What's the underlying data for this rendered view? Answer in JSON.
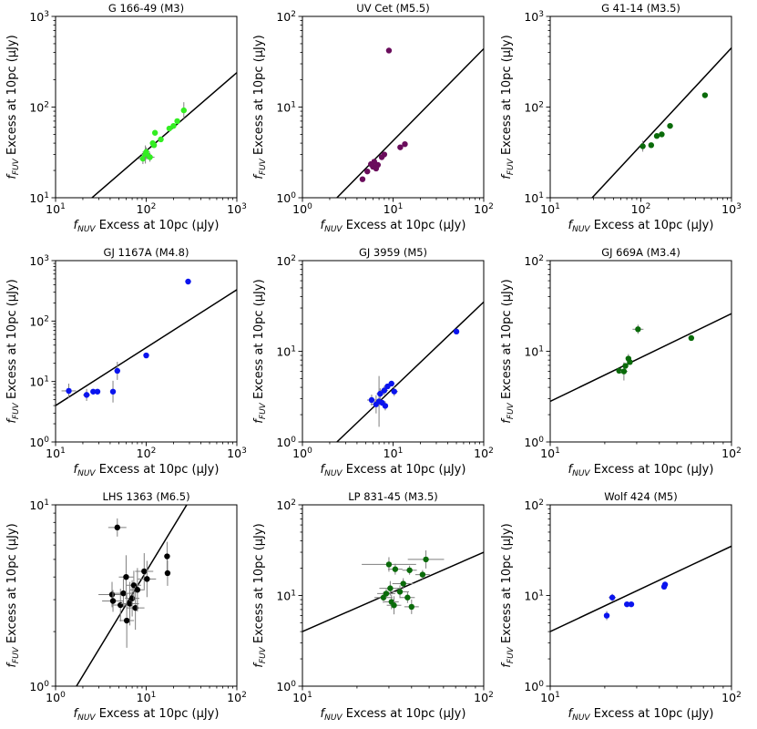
{
  "figure": {
    "xlabel_main": "f",
    "xlabel_sub": "NUV",
    "xlabel_rest": " Excess at 10pc (μJy)",
    "ylabel_main": "f",
    "ylabel_sub": "FUV",
    "ylabel_rest": " Excess at 10pc (μJy)"
  },
  "chart_data": [
    {
      "type": "scatter",
      "title": "G 166-49 (M3)",
      "color": "#33ee22",
      "x_scale": "log",
      "y_scale": "log",
      "xlim": [
        10,
        1000
      ],
      "ylim": [
        10,
        1000
      ],
      "x_ticks": [
        {
          "v": 10,
          "b": "10",
          "e": "1"
        },
        {
          "v": 100,
          "b": "10",
          "e": "2"
        },
        {
          "v": 1000,
          "b": "10",
          "e": "3"
        }
      ],
      "y_ticks": [
        {
          "v": 10,
          "b": "10",
          "e": "1"
        },
        {
          "v": 100,
          "b": "10",
          "e": "2"
        },
        {
          "v": 1000,
          "b": "10",
          "e": "3"
        }
      ],
      "fit_line": [
        [
          10,
          4.5
        ],
        [
          1000,
          240
        ]
      ],
      "points": [
        {
          "x": 92,
          "y": 27,
          "xerr": 0.05,
          "yerr": 0.06
        },
        {
          "x": 98,
          "y": 30,
          "xerr": 0.05,
          "yerr": 0.1
        },
        {
          "x": 100,
          "y": 32,
          "xerr": 0.04,
          "yerr": 0.05
        },
        {
          "x": 105,
          "y": 29
        },
        {
          "x": 110,
          "y": 28,
          "xerr": 0.05,
          "yerr": 0.05
        },
        {
          "x": 118,
          "y": 40
        },
        {
          "x": 122,
          "y": 38
        },
        {
          "x": 125,
          "y": 52
        },
        {
          "x": 145,
          "y": 44
        },
        {
          "x": 180,
          "y": 58
        },
        {
          "x": 200,
          "y": 62
        },
        {
          "x": 220,
          "y": 70
        },
        {
          "x": 260,
          "y": 92,
          "xerr": 0.03,
          "yerr": 0.09
        }
      ]
    },
    {
      "type": "scatter",
      "title": "UV Cet (M5.5)",
      "color": "#6a0d5c",
      "x_scale": "log",
      "y_scale": "log",
      "xlim": [
        1,
        100
      ],
      "ylim": [
        1,
        100
      ],
      "x_ticks": [
        {
          "v": 1,
          "b": "10",
          "e": "0"
        },
        {
          "v": 10,
          "b": "10",
          "e": "1"
        },
        {
          "v": 100,
          "b": "10",
          "e": "2"
        }
      ],
      "y_ticks": [
        {
          "v": 1,
          "b": "10",
          "e": "0"
        },
        {
          "v": 10,
          "b": "10",
          "e": "1"
        },
        {
          "v": 100,
          "b": "10",
          "e": "2"
        }
      ],
      "fit_line": [
        [
          2.4,
          1
        ],
        [
          100,
          44
        ]
      ],
      "points": [
        {
          "x": 9,
          "y": 42
        },
        {
          "x": 4.6,
          "y": 1.6
        },
        {
          "x": 5.2,
          "y": 1.95
        },
        {
          "x": 5.7,
          "y": 2.35
        },
        {
          "x": 6.0,
          "y": 2.2
        },
        {
          "x": 6.2,
          "y": 2.5
        },
        {
          "x": 6.5,
          "y": 2.1
        },
        {
          "x": 6.8,
          "y": 2.3
        },
        {
          "x": 7.5,
          "y": 2.8
        },
        {
          "x": 8.0,
          "y": 3.0
        },
        {
          "x": 12,
          "y": 3.6
        },
        {
          "x": 13.5,
          "y": 3.9
        }
      ]
    },
    {
      "type": "scatter",
      "title": "G 41-14 (M3.5)",
      "color": "#0a6b0a",
      "x_scale": "log",
      "y_scale": "log",
      "xlim": [
        10,
        1000
      ],
      "ylim": [
        10,
        1000
      ],
      "x_ticks": [
        {
          "v": 10,
          "b": "10",
          "e": "1"
        },
        {
          "v": 100,
          "b": "10",
          "e": "2"
        },
        {
          "v": 1000,
          "b": "10",
          "e": "3"
        }
      ],
      "y_ticks": [
        {
          "v": 10,
          "b": "10",
          "e": "1"
        },
        {
          "v": 100,
          "b": "10",
          "e": "2"
        },
        {
          "v": 1000,
          "b": "10",
          "e": "3"
        }
      ],
      "fit_line": [
        [
          29,
          10
        ],
        [
          1000,
          450
        ]
      ],
      "points": [
        {
          "x": 105,
          "y": 37,
          "xerr": 0.03,
          "yerr": 0.06
        },
        {
          "x": 130,
          "y": 38
        },
        {
          "x": 150,
          "y": 48
        },
        {
          "x": 170,
          "y": 50
        },
        {
          "x": 210,
          "y": 62
        },
        {
          "x": 510,
          "y": 135
        }
      ]
    },
    {
      "type": "scatter",
      "title": "GJ 1167A (M4.8)",
      "color": "#0a14ee",
      "x_scale": "log",
      "y_scale": "log",
      "xlim": [
        10,
        1000
      ],
      "ylim": [
        1,
        1000
      ],
      "x_ticks": [
        {
          "v": 10,
          "b": "10",
          "e": "1"
        },
        {
          "v": 100,
          "b": "10",
          "e": "2"
        },
        {
          "v": 1000,
          "b": "10",
          "e": "3"
        }
      ],
      "y_ticks": [
        {
          "v": 1,
          "b": "10",
          "e": "0"
        },
        {
          "v": 10,
          "b": "10",
          "e": "1"
        },
        {
          "v": 100,
          "b": "10",
          "e": "2"
        },
        {
          "v": 1000,
          "b": "10",
          "e": "3"
        }
      ],
      "fit_line": [
        [
          10,
          4
        ],
        [
          1000,
          330
        ]
      ],
      "points": [
        {
          "x": 14,
          "y": 7,
          "xerr": 0.08,
          "yerr": 0.12
        },
        {
          "x": 22,
          "y": 6,
          "xerr": 0.04,
          "yerr": 0.1
        },
        {
          "x": 26,
          "y": 6.8
        },
        {
          "x": 29,
          "y": 6.8
        },
        {
          "x": 43,
          "y": 6.8,
          "xerr": 0.03,
          "yerr": 0.18
        },
        {
          "x": 48,
          "y": 15,
          "xerr": 0.03,
          "yerr": 0.15
        },
        {
          "x": 100,
          "y": 27
        },
        {
          "x": 290,
          "y": 450
        }
      ]
    },
    {
      "type": "scatter",
      "title": "GJ 3959 (M5)",
      "color": "#0a14ee",
      "x_scale": "log",
      "y_scale": "log",
      "xlim": [
        1,
        100
      ],
      "ylim": [
        1,
        100
      ],
      "x_ticks": [
        {
          "v": 1,
          "b": "10",
          "e": "0"
        },
        {
          "v": 10,
          "b": "10",
          "e": "1"
        },
        {
          "v": 100,
          "b": "10",
          "e": "2"
        }
      ],
      "y_ticks": [
        {
          "v": 1,
          "b": "10",
          "e": "0"
        },
        {
          "v": 10,
          "b": "10",
          "e": "1"
        },
        {
          "v": 100,
          "b": "10",
          "e": "2"
        }
      ],
      "fit_line": [
        [
          2.4,
          1
        ],
        [
          100,
          35
        ]
      ],
      "points": [
        {
          "x": 5.8,
          "y": 2.9,
          "xerr": 0.05,
          "yerr": 0.06
        },
        {
          "x": 6.5,
          "y": 2.6,
          "xerr": 0.06,
          "yerr": 0.1
        },
        {
          "x": 7.0,
          "y": 2.8,
          "xerr": 0.05,
          "yerr": 0.28
        },
        {
          "x": 7.2,
          "y": 3.4,
          "xerr": 0.04,
          "yerr": 0.06
        },
        {
          "x": 7.6,
          "y": 2.7
        },
        {
          "x": 8.0,
          "y": 3.7,
          "xerr": 0.04,
          "yerr": 0.05
        },
        {
          "x": 8.2,
          "y": 2.5,
          "xerr": 0.03,
          "yerr": 0.05
        },
        {
          "x": 8.7,
          "y": 4.1
        },
        {
          "x": 9.6,
          "y": 4.4
        },
        {
          "x": 10.3,
          "y": 3.6,
          "xerr": 0.04,
          "yerr": 0.05
        },
        {
          "x": 50,
          "y": 16.5
        }
      ]
    },
    {
      "type": "scatter",
      "title": "GJ 669A (M3.4)",
      "color": "#0a6b0a",
      "x_scale": "log",
      "y_scale": "log",
      "xlim": [
        10,
        100
      ],
      "ylim": [
        1,
        100
      ],
      "x_ticks": [
        {
          "v": 10,
          "b": "10",
          "e": "1"
        },
        {
          "v": 100,
          "b": "10",
          "e": "2"
        }
      ],
      "y_ticks": [
        {
          "v": 1,
          "b": "10",
          "e": "0"
        },
        {
          "v": 10,
          "b": "10",
          "e": "1"
        },
        {
          "v": 100,
          "b": "10",
          "e": "2"
        }
      ],
      "fit_line": [
        [
          10,
          2.8
        ],
        [
          100,
          26
        ]
      ],
      "points": [
        {
          "x": 24,
          "y": 6.1
        },
        {
          "x": 25.5,
          "y": 6.0,
          "xerr": 0.02,
          "yerr": 0.1
        },
        {
          "x": 26,
          "y": 6.9
        },
        {
          "x": 27,
          "y": 8.3,
          "xerr": 0.01,
          "yerr": 0.05
        },
        {
          "x": 27.5,
          "y": 7.6
        },
        {
          "x": 30.5,
          "y": 17.5,
          "xerr": 0.03,
          "yerr": 0.05
        },
        {
          "x": 60,
          "y": 14
        }
      ]
    },
    {
      "type": "scatter",
      "title": "LHS 1363 (M6.5)",
      "color": "#000000",
      "x_scale": "log",
      "y_scale": "log",
      "xlim": [
        1,
        100
      ],
      "ylim": [
        1,
        10
      ],
      "x_ticks": [
        {
          "v": 1,
          "b": "10",
          "e": "0"
        },
        {
          "v": 10,
          "b": "10",
          "e": "1"
        },
        {
          "v": 100,
          "b": "10",
          "e": "2"
        }
      ],
      "y_ticks": [
        {
          "v": 1,
          "b": "10",
          "e": "0"
        },
        {
          "v": 10,
          "b": "10",
          "e": "1"
        }
      ],
      "fit_line": [
        [
          1.7,
          1
        ],
        [
          28,
          10
        ]
      ],
      "points": [
        {
          "x": 4.8,
          "y": 7.5,
          "xerr": 0.1,
          "yerr": 0.05
        },
        {
          "x": 4.2,
          "y": 3.2,
          "xerr": 0.15,
          "yerr": 0.07
        },
        {
          "x": 4.3,
          "y": 2.95,
          "xerr": 0.12,
          "yerr": 0.06
        },
        {
          "x": 5.2,
          "y": 2.8,
          "xerr": 0.1,
          "yerr": 0.09
        },
        {
          "x": 5.6,
          "y": 3.25,
          "xerr": 0.1,
          "yerr": 0.08
        },
        {
          "x": 6.0,
          "y": 4.0,
          "xerr": 0.08,
          "yerr": 0.12
        },
        {
          "x": 6.1,
          "y": 2.3,
          "xerr": 0.08,
          "yerr": 0.15
        },
        {
          "x": 6.6,
          "y": 2.85,
          "xerr": 0.1,
          "yerr": 0.12
        },
        {
          "x": 7.0,
          "y": 3.05,
          "xerr": 0.08,
          "yerr": 0.1
        },
        {
          "x": 7.3,
          "y": 3.6,
          "xerr": 0.08,
          "yerr": 0.08
        },
        {
          "x": 7.6,
          "y": 2.7,
          "xerr": 0.1,
          "yerr": 0.12
        },
        {
          "x": 8.0,
          "y": 3.4,
          "xerr": 0.08,
          "yerr": 0.12
        },
        {
          "x": 9.5,
          "y": 4.3,
          "xerr": 0.1,
          "yerr": 0.1
        },
        {
          "x": 10.2,
          "y": 3.9,
          "xerr": 0.1,
          "yerr": 0.1
        },
        {
          "x": 17.0,
          "y": 5.2,
          "xerr": 0.02,
          "yerr": 0.08
        },
        {
          "x": 17.2,
          "y": 4.2,
          "xerr": 0.02,
          "yerr": 0.07
        }
      ]
    },
    {
      "type": "scatter",
      "title": "LP 831-45 (M3.5)",
      "color": "#0a6b0a",
      "x_scale": "log",
      "y_scale": "log",
      "xlim": [
        10,
        100
      ],
      "ylim": [
        1,
        100
      ],
      "x_ticks": [
        {
          "v": 10,
          "b": "10",
          "e": "1"
        },
        {
          "v": 100,
          "b": "10",
          "e": "2"
        }
      ],
      "y_ticks": [
        {
          "v": 1,
          "b": "10",
          "e": "0"
        },
        {
          "v": 10,
          "b": "10",
          "e": "1"
        },
        {
          "v": 100,
          "b": "10",
          "e": "2"
        }
      ],
      "fit_line": [
        [
          10,
          4
        ],
        [
          100,
          30
        ]
      ],
      "points": [
        {
          "x": 28,
          "y": 9.5,
          "xerr": 0.05,
          "yerr": 0.06
        },
        {
          "x": 29,
          "y": 10.5,
          "xerr": 0.05,
          "yerr": 0.05
        },
        {
          "x": 30,
          "y": 22,
          "xerr": 0.15,
          "yerr": 0.08
        },
        {
          "x": 30.5,
          "y": 12,
          "xerr": 0.06,
          "yerr": 0.08
        },
        {
          "x": 31,
          "y": 8.5,
          "xerr": 0.04,
          "yerr": 0.08
        },
        {
          "x": 32,
          "y": 7.8,
          "xerr": 0.04,
          "yerr": 0.1
        },
        {
          "x": 32.5,
          "y": 19.5,
          "xerr": 0.04,
          "yerr": 0.06
        },
        {
          "x": 34.5,
          "y": 11,
          "xerr": 0.05,
          "yerr": 0.07
        },
        {
          "x": 36,
          "y": 13.5,
          "xerr": 0.06,
          "yerr": 0.06
        },
        {
          "x": 38,
          "y": 9.5,
          "xerr": 0.04,
          "yerr": 0.06
        },
        {
          "x": 39,
          "y": 19,
          "xerr": 0.04,
          "yerr": 0.05
        },
        {
          "x": 40,
          "y": 7.5,
          "xerr": 0.04,
          "yerr": 0.08
        },
        {
          "x": 46,
          "y": 17,
          "xerr": 0.04,
          "yerr": 0.05
        },
        {
          "x": 48,
          "y": 25,
          "xerr": 0.1,
          "yerr": 0.1
        }
      ]
    },
    {
      "type": "scatter",
      "title": "Wolf 424 (M5)",
      "color": "#0a14ee",
      "x_scale": "log",
      "y_scale": "log",
      "xlim": [
        10,
        100
      ],
      "ylim": [
        1,
        100
      ],
      "x_ticks": [
        {
          "v": 10,
          "b": "10",
          "e": "1"
        },
        {
          "v": 100,
          "b": "10",
          "e": "2"
        }
      ],
      "y_ticks": [
        {
          "v": 1,
          "b": "10",
          "e": "0"
        },
        {
          "v": 10,
          "b": "10",
          "e": "1"
        },
        {
          "v": 100,
          "b": "10",
          "e": "2"
        }
      ],
      "fit_line": [
        [
          10,
          4
        ],
        [
          100,
          35
        ]
      ],
      "points": [
        {
          "x": 20.5,
          "y": 6,
          "xerr": 0.015,
          "yerr": 0.05
        },
        {
          "x": 22,
          "y": 9.5,
          "xerr": 0.02,
          "yerr": 0.04
        },
        {
          "x": 26.5,
          "y": 8
        },
        {
          "x": 28,
          "y": 8
        },
        {
          "x": 42.5,
          "y": 12.5
        },
        {
          "x": 43,
          "y": 13.2
        }
      ]
    }
  ]
}
